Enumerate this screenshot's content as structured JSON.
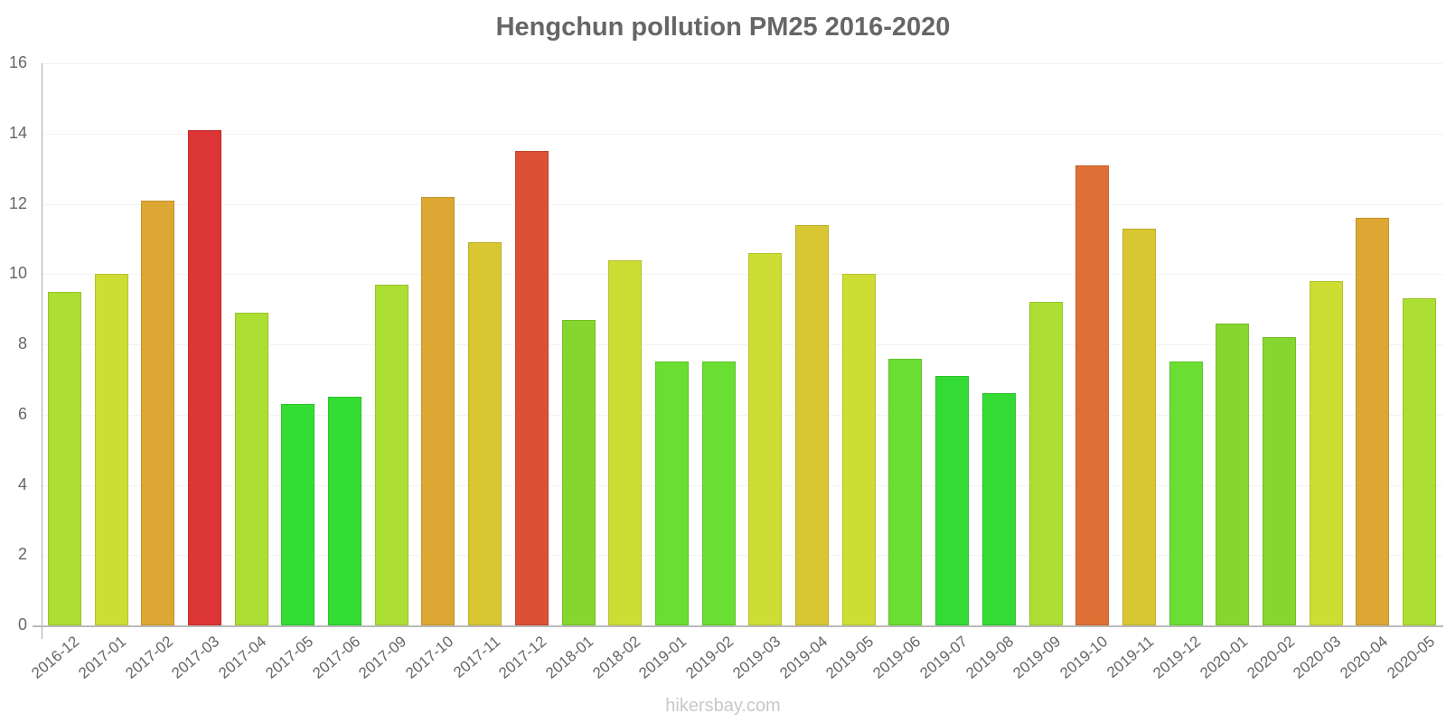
{
  "chart_data": {
    "type": "bar",
    "title": "Hengchun pollution PM25 2016-2020",
    "xlabel": "",
    "ylabel": "",
    "ylim": [
      0,
      16
    ],
    "yticks": [
      0,
      2,
      4,
      6,
      8,
      10,
      12,
      14,
      16
    ],
    "grid": true,
    "legend": null,
    "categories": [
      "2016-12",
      "2017-01",
      "2017-02",
      "2017-03",
      "2017-04",
      "2017-05",
      "2017-06",
      "2017-09",
      "2017-10",
      "2017-11",
      "2017-12",
      "2018-01",
      "2018-02",
      "2019-01",
      "2019-02",
      "2019-03",
      "2019-04",
      "2019-05",
      "2019-06",
      "2019-07",
      "2019-08",
      "2019-09",
      "2019-10",
      "2019-11",
      "2019-12",
      "2020-01",
      "2020-02",
      "2020-03",
      "2020-04",
      "2020-05"
    ],
    "values": [
      9.5,
      10.0,
      12.1,
      14.1,
      8.9,
      6.3,
      6.5,
      9.7,
      12.2,
      10.9,
      13.5,
      8.7,
      10.4,
      7.5,
      7.5,
      10.6,
      11.4,
      10.0,
      7.6,
      7.1,
      6.6,
      9.2,
      13.1,
      11.3,
      7.5,
      8.6,
      8.2,
      9.8,
      11.6,
      9.3
    ],
    "colors": [
      "#acde33",
      "#cddd33",
      "#dca833",
      "#dc3535",
      "#acde33",
      "#33dd33",
      "#33dd33",
      "#acde33",
      "#dca833",
      "#d8c733",
      "#dc5035",
      "#86d630",
      "#cddd33",
      "#6ade32",
      "#6ade32",
      "#cddd33",
      "#d8c733",
      "#cddd33",
      "#6ade32",
      "#35db35",
      "#35db35",
      "#acde33",
      "#df7035",
      "#d8c733",
      "#6ade32",
      "#86d630",
      "#86d630",
      "#cddd33",
      "#dca833",
      "#acde33"
    ]
  },
  "watermark": "hikersbay.com"
}
